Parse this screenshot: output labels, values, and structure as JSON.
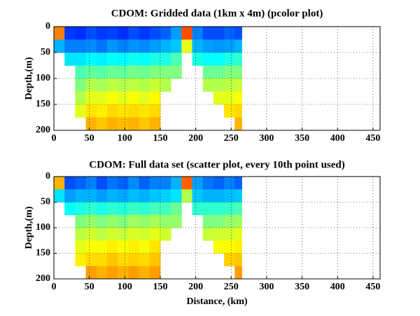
{
  "chart_data": [
    {
      "type": "heatmap",
      "title": "CDOM: Gridded data (1km x 4m) (pcolor plot)",
      "ylabel": "Depth,(m)",
      "colormap": "jet",
      "grid": true,
      "y_reversed": true,
      "xlim": [
        0,
        460
      ],
      "ylim": [
        0,
        200
      ],
      "xticks": [
        0,
        50,
        100,
        150,
        200,
        250,
        300,
        350,
        400,
        450
      ],
      "yticks": [
        0,
        50,
        100,
        150,
        200
      ],
      "x_edges": [
        0,
        15,
        30,
        45,
        60,
        75,
        90,
        105,
        120,
        135,
        150,
        165,
        180,
        195,
        210,
        225,
        240,
        255,
        265
      ],
      "y_edges": [
        0,
        25,
        50,
        75,
        100,
        125,
        150,
        175,
        200
      ],
      "values": [
        [
          0.75,
          0.18,
          0.17,
          0.2,
          0.18,
          0.19,
          0.17,
          0.2,
          0.18,
          0.2,
          0.22,
          0.28,
          0.8,
          0.25,
          0.2,
          0.2,
          0.22,
          0.2
        ],
        [
          0.3,
          0.25,
          0.25,
          0.26,
          0.24,
          0.27,
          0.25,
          0.27,
          0.26,
          0.28,
          0.3,
          0.32,
          0.6,
          0.3,
          0.28,
          0.27,
          0.28,
          0.3
        ],
        [
          null,
          0.35,
          0.35,
          0.37,
          0.36,
          0.38,
          0.37,
          0.39,
          0.38,
          0.4,
          0.4,
          0.45,
          null,
          0.4,
          0.38,
          0.38,
          0.4,
          0.42
        ],
        [
          null,
          null,
          0.45,
          0.47,
          0.46,
          0.48,
          0.47,
          0.49,
          0.48,
          0.5,
          0.5,
          0.5,
          null,
          null,
          0.48,
          0.48,
          0.5,
          0.5
        ],
        [
          null,
          null,
          0.5,
          0.55,
          0.54,
          0.56,
          0.55,
          0.56,
          0.55,
          0.57,
          0.55,
          null,
          null,
          null,
          0.55,
          0.55,
          0.56,
          0.57
        ],
        [
          null,
          null,
          0.55,
          0.6,
          0.6,
          0.62,
          0.6,
          0.62,
          0.6,
          0.63,
          null,
          null,
          null,
          null,
          null,
          0.6,
          0.6,
          0.62
        ],
        [
          null,
          null,
          0.6,
          0.65,
          0.64,
          0.66,
          0.65,
          0.66,
          0.65,
          0.66,
          null,
          null,
          null,
          null,
          null,
          null,
          0.65,
          0.66
        ],
        [
          null,
          null,
          null,
          0.7,
          0.68,
          0.7,
          0.69,
          0.7,
          0.68,
          0.7,
          null,
          null,
          null,
          null,
          null,
          null,
          null,
          0.7
        ]
      ]
    },
    {
      "type": "heatmap",
      "title": "CDOM: Full data set (scatter plot, every 10th point used)",
      "ylabel": "Depth,(m)",
      "xlabel": "Distance, (km)",
      "colormap": "jet",
      "grid": true,
      "y_reversed": true,
      "xlim": [
        0,
        460
      ],
      "ylim": [
        0,
        200
      ],
      "xticks": [
        0,
        50,
        100,
        150,
        200,
        250,
        300,
        350,
        400,
        450
      ],
      "yticks": [
        0,
        50,
        100,
        150,
        200
      ],
      "x_edges": [
        0,
        15,
        30,
        45,
        60,
        75,
        90,
        105,
        120,
        135,
        150,
        165,
        180,
        195,
        210,
        225,
        240,
        255,
        265
      ],
      "y_edges": [
        0,
        25,
        50,
        75,
        100,
        125,
        150,
        175,
        200
      ],
      "values": [
        [
          0.7,
          0.2,
          0.22,
          0.25,
          0.2,
          0.24,
          0.22,
          0.26,
          0.22,
          0.25,
          0.25,
          0.3,
          0.78,
          0.28,
          0.24,
          0.22,
          0.25,
          0.22
        ],
        [
          0.35,
          0.28,
          0.3,
          0.3,
          0.28,
          0.3,
          0.29,
          0.31,
          0.3,
          0.32,
          0.33,
          0.35,
          0.55,
          0.32,
          0.3,
          0.3,
          0.31,
          0.32
        ],
        [
          null,
          0.38,
          0.4,
          0.42,
          0.4,
          0.42,
          0.41,
          0.43,
          0.42,
          0.44,
          0.44,
          0.48,
          null,
          0.42,
          0.42,
          0.42,
          0.43,
          0.45
        ],
        [
          null,
          null,
          0.5,
          0.52,
          0.5,
          0.52,
          0.5,
          0.53,
          0.52,
          0.54,
          0.52,
          0.52,
          null,
          null,
          0.5,
          0.5,
          0.52,
          0.53
        ],
        [
          null,
          null,
          0.56,
          0.58,
          0.56,
          0.58,
          0.57,
          0.59,
          0.58,
          0.6,
          0.58,
          null,
          null,
          null,
          0.57,
          0.58,
          0.58,
          0.6
        ],
        [
          null,
          null,
          0.6,
          0.62,
          0.62,
          0.64,
          0.62,
          0.64,
          0.62,
          0.65,
          null,
          null,
          null,
          null,
          null,
          0.62,
          0.63,
          0.64
        ],
        [
          null,
          null,
          0.64,
          0.66,
          0.66,
          0.68,
          0.66,
          0.67,
          0.66,
          0.68,
          null,
          null,
          null,
          null,
          null,
          null,
          0.67,
          0.68
        ],
        [
          null,
          null,
          null,
          0.72,
          0.7,
          0.72,
          0.7,
          0.72,
          0.7,
          0.72,
          null,
          null,
          null,
          null,
          null,
          null,
          null,
          0.72
        ]
      ]
    }
  ]
}
